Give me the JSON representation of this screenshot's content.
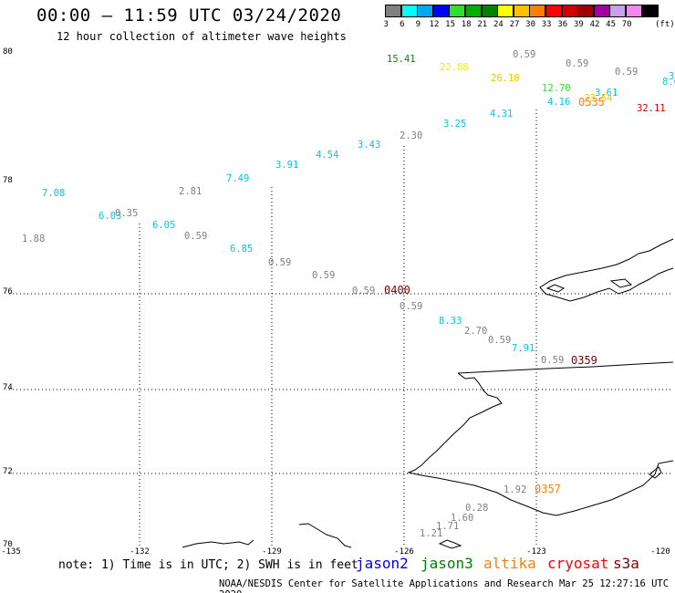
{
  "title": "00:00 – 11:59 UTC 03/24/2020",
  "subtitle": "12 hour collection of altimeter wave heights",
  "colorbar": {
    "unit": "(ft)",
    "bins": [
      {
        "label": "3",
        "color": "#808080"
      },
      {
        "label": "6",
        "color": "#00ffff"
      },
      {
        "label": "9",
        "color": "#00a8f0"
      },
      {
        "label": "12",
        "color": "#0000ff"
      },
      {
        "label": "15",
        "color": "#30e030"
      },
      {
        "label": "18",
        "color": "#00b000"
      },
      {
        "label": "21",
        "color": "#008000"
      },
      {
        "label": "24",
        "color": "#ffff00"
      },
      {
        "label": "27",
        "color": "#ffc000"
      },
      {
        "label": "30",
        "color": "#ff8000"
      },
      {
        "label": "33",
        "color": "#ff0000"
      },
      {
        "label": "36",
        "color": "#d00000"
      },
      {
        "label": "39",
        "color": "#a00000"
      },
      {
        "label": "42",
        "color": "#a000a0"
      },
      {
        "label": "45",
        "color": "#c8a0f0"
      },
      {
        "label": "70",
        "color": "#f088f0"
      },
      {
        "label": "",
        "color": "#000000"
      }
    ]
  },
  "lat_labels": [
    "80",
    "78",
    "76",
    "74",
    "72",
    "70"
  ],
  "lon_labels": [
    "-135",
    "-132",
    "-129",
    "-126",
    "-123",
    "-120"
  ],
  "note": "note: 1) Time is in UTC; 2) SWH is in feet",
  "satellites": [
    {
      "name": "jason2",
      "color": "#0000ff"
    },
    {
      "name": "jason3",
      "color": "#008000"
    },
    {
      "name": "altika",
      "color": "#ff8000"
    },
    {
      "name": "cryosat",
      "color": "#ff0000"
    },
    {
      "name": "s3a",
      "color": "#800000"
    }
  ],
  "credit": "NOAA/NESDIS Center for Satellite Applications and Research    Mar 25 12:27:16 UTC 2020",
  "swh_points": [
    {
      "v": "15.41",
      "c": "#009000"
    },
    {
      "v": "22.88",
      "c": "#f0f000"
    },
    {
      "v": "0.59",
      "c": "#808080"
    },
    {
      "v": "0.59",
      "c": "#808080"
    },
    {
      "v": "26.10",
      "c": "#ffc000"
    },
    {
      "v": "0.59",
      "c": "#808080"
    },
    {
      "v": "3",
      "c": "#00c8e8"
    },
    {
      "v": "8.6",
      "c": "#00c8e8"
    },
    {
      "v": "12.70",
      "c": "#30e030"
    },
    {
      "v": "3.61",
      "c": "#00c8e8"
    },
    {
      "v": "4.16",
      "c": "#00c8e8"
    },
    {
      "v": "23.54",
      "c": "#ffc000"
    },
    {
      "v": "32.11",
      "c": "#e00000"
    },
    {
      "v": "4.31",
      "c": "#00c8e8"
    },
    {
      "v": "3.25",
      "c": "#00c8e8"
    },
    {
      "v": "2.30",
      "c": "#808080"
    },
    {
      "v": "3.43",
      "c": "#00c8e8"
    },
    {
      "v": "4.54",
      "c": "#00c8e8"
    },
    {
      "v": "3.91",
      "c": "#00c8e8"
    },
    {
      "v": "7.49",
      "c": "#00c8e8"
    },
    {
      "v": "2.81",
      "c": "#808080"
    },
    {
      "v": "7.08",
      "c": "#00c8e8"
    },
    {
      "v": "6.03",
      "c": "#00c8e8"
    },
    {
      "v": "0.35",
      "c": "#808080"
    },
    {
      "v": "6.05",
      "c": "#00c8e8"
    },
    {
      "v": "0.59",
      "c": "#808080"
    },
    {
      "v": "1.88",
      "c": "#808080"
    },
    {
      "v": "6.85",
      "c": "#00c8e8"
    },
    {
      "v": "0.59",
      "c": "#808080"
    },
    {
      "v": "0.59",
      "c": "#808080"
    },
    {
      "v": "0.59",
      "c": "#808080"
    },
    {
      "v": "0.59",
      "c": "#808080"
    },
    {
      "v": "8.33",
      "c": "#00c8e8"
    },
    {
      "v": "2.70",
      "c": "#808080"
    },
    {
      "v": "0.59",
      "c": "#808080"
    },
    {
      "v": "7.91",
      "c": "#00c8e8"
    },
    {
      "v": "0.59",
      "c": "#808080"
    },
    {
      "v": "1.92",
      "c": "#808080"
    },
    {
      "v": "0.28",
      "c": "#808080"
    },
    {
      "v": "1.60",
      "c": "#808080"
    },
    {
      "v": "1.71",
      "c": "#808080"
    },
    {
      "v": "1.21",
      "c": "#808080"
    }
  ],
  "time_labels": [
    {
      "v": "0535",
      "c": "#ff8000"
    },
    {
      "v": "0400",
      "c": "#800000"
    },
    {
      "v": "0359",
      "c": "#800000"
    },
    {
      "v": "0357",
      "c": "#ff8000"
    }
  ]
}
